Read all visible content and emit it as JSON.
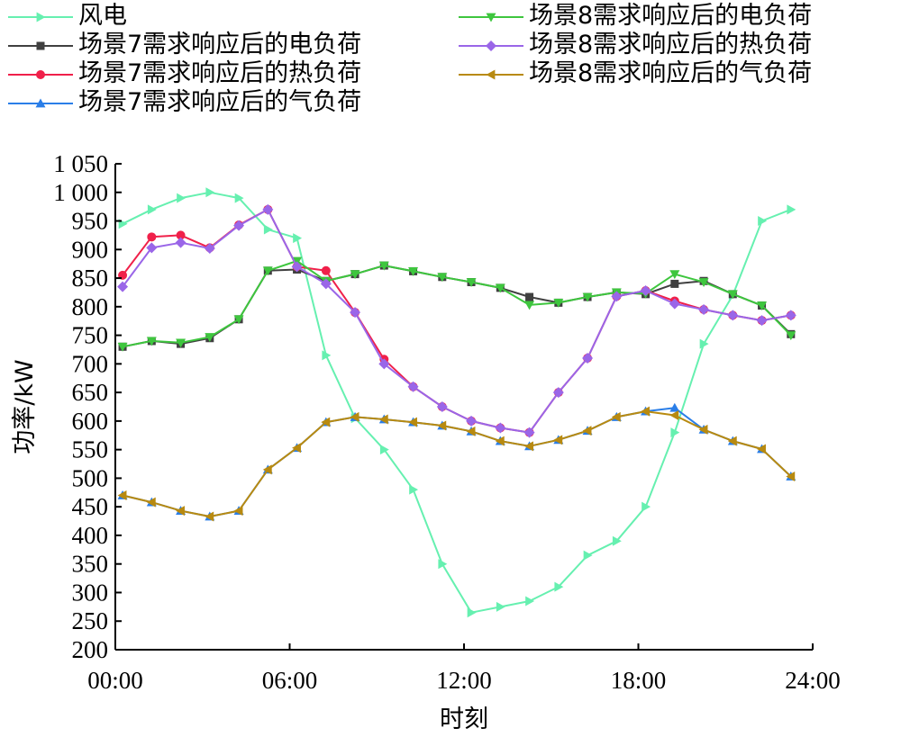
{
  "chart_data": {
    "type": "line",
    "xlabel": "时刻",
    "ylabel": "功率/kW",
    "x_tick_labels": [
      "00:00",
      "06:00",
      "12:00",
      "18:00",
      "24:00"
    ],
    "x_ticks": [
      0,
      6,
      12,
      18,
      24
    ],
    "xlim": [
      0,
      24
    ],
    "ylim": [
      200,
      1050
    ],
    "y_ticks": [
      200,
      250,
      300,
      350,
      400,
      450,
      500,
      550,
      600,
      650,
      700,
      750,
      800,
      850,
      900,
      950,
      1000,
      1050
    ],
    "y_tick_labels": [
      "200",
      "250",
      "300",
      "350",
      "400",
      "450",
      "500",
      "550",
      "600",
      "650",
      "700",
      "750",
      "800",
      "850",
      "900",
      "950",
      "1 000",
      "1 050"
    ],
    "grid": false,
    "legend_position": "top",
    "x": [
      0.25,
      1.25,
      2.25,
      3.25,
      4.25,
      5.25,
      6.25,
      7.25,
      8.25,
      9.25,
      10.25,
      11.25,
      12.25,
      13.25,
      14.25,
      15.25,
      16.25,
      17.25,
      18.25,
      19.25,
      20.25,
      21.25,
      22.25,
      23.25
    ],
    "series": [
      {
        "name": "风电",
        "color": "#66f0b0",
        "marker": "triangle-right",
        "values": [
          945,
          970,
          990,
          1000,
          990,
          935,
          920,
          715,
          605,
          550,
          480,
          350,
          265,
          275,
          285,
          310,
          365,
          390,
          450,
          580,
          735,
          820,
          950,
          970
        ]
      },
      {
        "name": "场景7需求响应后的电负荷",
        "color": "#404040",
        "marker": "square",
        "values": [
          730,
          740,
          735,
          745,
          778,
          863,
          865,
          845,
          857,
          872,
          862,
          852,
          843,
          833,
          817,
          807,
          817,
          825,
          822,
          840,
          845,
          822,
          802,
          752
        ]
      },
      {
        "name": "场景7需求响应后的热负荷",
        "color": "#f0204a",
        "marker": "circle",
        "values": [
          855,
          922,
          925,
          903,
          943,
          970,
          870,
          863,
          790,
          708,
          660,
          625,
          600,
          588,
          580,
          650,
          710,
          818,
          828,
          810,
          795,
          785,
          776,
          785
        ]
      },
      {
        "name": "场景7需求响应后的气负荷",
        "color": "#2a7ee8",
        "marker": "triangle-up",
        "values": [
          470,
          458,
          443,
          433,
          443,
          515,
          553,
          598,
          607,
          603,
          598,
          592,
          582,
          565,
          556,
          567,
          583,
          607,
          617,
          623,
          585,
          565,
          551,
          503
        ]
      },
      {
        "name": "场景8需求响应后的电负荷",
        "color": "#3ec63e",
        "marker": "triangle-down",
        "values": [
          730,
          740,
          737,
          747,
          778,
          863,
          880,
          845,
          857,
          872,
          862,
          852,
          843,
          833,
          803,
          807,
          817,
          825,
          823,
          857,
          843,
          822,
          802,
          750
        ]
      },
      {
        "name": "场景8需求响应后的热负荷",
        "color": "#9a66e8",
        "marker": "diamond",
        "values": [
          835,
          903,
          912,
          902,
          942,
          970,
          870,
          840,
          790,
          700,
          660,
          625,
          600,
          588,
          580,
          650,
          710,
          818,
          828,
          805,
          795,
          785,
          776,
          785
        ]
      },
      {
        "name": "场景8需求响应后的气负荷",
        "color": "#b88a10",
        "marker": "triangle-left",
        "values": [
          470,
          458,
          443,
          433,
          443,
          515,
          553,
          598,
          607,
          603,
          598,
          592,
          582,
          565,
          556,
          567,
          583,
          607,
          617,
          610,
          585,
          565,
          551,
          503
        ]
      }
    ]
  }
}
